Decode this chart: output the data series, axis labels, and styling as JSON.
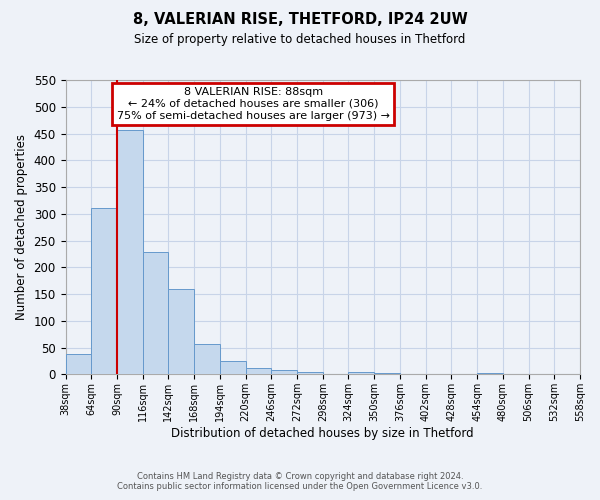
{
  "title": "8, VALERIAN RISE, THETFORD, IP24 2UW",
  "subtitle": "Size of property relative to detached houses in Thetford",
  "xlabel": "Distribution of detached houses by size in Thetford",
  "ylabel": "Number of detached properties",
  "bar_values": [
    38,
    310,
    457,
    228,
    160,
    57,
    25,
    12,
    8,
    5,
    0,
    4,
    2,
    0,
    0,
    0,
    2,
    0,
    0,
    0
  ],
  "bin_edges": [
    38,
    64,
    90,
    116,
    142,
    168,
    194,
    220,
    246,
    272,
    298,
    324,
    350,
    376,
    402,
    428,
    454,
    480,
    506,
    532,
    558
  ],
  "bin_labels": [
    "38sqm",
    "64sqm",
    "90sqm",
    "116sqm",
    "142sqm",
    "168sqm",
    "194sqm",
    "220sqm",
    "246sqm",
    "272sqm",
    "298sqm",
    "324sqm",
    "350sqm",
    "376sqm",
    "402sqm",
    "428sqm",
    "454sqm",
    "480sqm",
    "506sqm",
    "532sqm",
    "558sqm"
  ],
  "bar_color": "#c5d8ed",
  "bar_edge_color": "#6699cc",
  "property_line_x": 90,
  "ylim": [
    0,
    550
  ],
  "yticks": [
    0,
    50,
    100,
    150,
    200,
    250,
    300,
    350,
    400,
    450,
    500,
    550
  ],
  "annotation_title": "8 VALERIAN RISE: 88sqm",
  "annotation_line1": "← 24% of detached houses are smaller (306)",
  "annotation_line2": "75% of semi-detached houses are larger (973) →",
  "annotation_box_color": "#ffffff",
  "annotation_border_color": "#cc0000",
  "red_line_color": "#cc0000",
  "grid_color": "#c8d4e8",
  "bg_color": "#eef2f8",
  "footer1": "Contains HM Land Registry data © Crown copyright and database right 2024.",
  "footer2": "Contains public sector information licensed under the Open Government Licence v3.0."
}
